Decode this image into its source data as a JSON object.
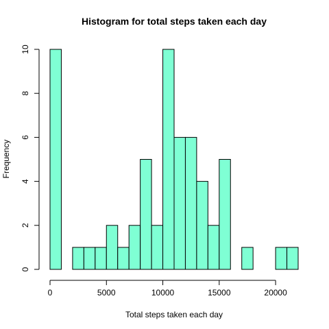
{
  "chart_data": {
    "type": "bar",
    "title": "Histogram for total steps taken each day",
    "xlabel": "Total steps taken each day",
    "ylabel": "Frequency",
    "bin_width": 1000,
    "bins": [
      {
        "start": 0,
        "end": 1000,
        "count": 10
      },
      {
        "start": 1000,
        "end": 2000,
        "count": 0
      },
      {
        "start": 2000,
        "end": 3000,
        "count": 1
      },
      {
        "start": 3000,
        "end": 4000,
        "count": 1
      },
      {
        "start": 4000,
        "end": 5000,
        "count": 1
      },
      {
        "start": 5000,
        "end": 6000,
        "count": 2
      },
      {
        "start": 6000,
        "end": 7000,
        "count": 1
      },
      {
        "start": 7000,
        "end": 8000,
        "count": 2
      },
      {
        "start": 8000,
        "end": 9000,
        "count": 5
      },
      {
        "start": 9000,
        "end": 10000,
        "count": 2
      },
      {
        "start": 10000,
        "end": 11000,
        "count": 10
      },
      {
        "start": 11000,
        "end": 12000,
        "count": 6
      },
      {
        "start": 12000,
        "end": 13000,
        "count": 6
      },
      {
        "start": 13000,
        "end": 14000,
        "count": 4
      },
      {
        "start": 14000,
        "end": 15000,
        "count": 2
      },
      {
        "start": 15000,
        "end": 16000,
        "count": 5
      },
      {
        "start": 16000,
        "end": 17000,
        "count": 0
      },
      {
        "start": 17000,
        "end": 18000,
        "count": 1
      },
      {
        "start": 18000,
        "end": 19000,
        "count": 0
      },
      {
        "start": 19000,
        "end": 20000,
        "count": 0
      },
      {
        "start": 20000,
        "end": 21000,
        "count": 1
      },
      {
        "start": 21000,
        "end": 22000,
        "count": 1
      }
    ],
    "xlim": [
      0,
      22000
    ],
    "ylim": [
      0,
      10
    ],
    "x_ticks": [
      0,
      5000,
      10000,
      15000,
      20000
    ],
    "x_tick_labels": [
      "0",
      "5000",
      "10000",
      "15000",
      "20000"
    ],
    "y_ticks": [
      0,
      2,
      4,
      6,
      8,
      10
    ],
    "y_tick_labels": [
      "0",
      "2",
      "4",
      "6",
      "8",
      "10"
    ],
    "bar_color": "#7FFFD4",
    "grid": false,
    "legend": "none"
  }
}
